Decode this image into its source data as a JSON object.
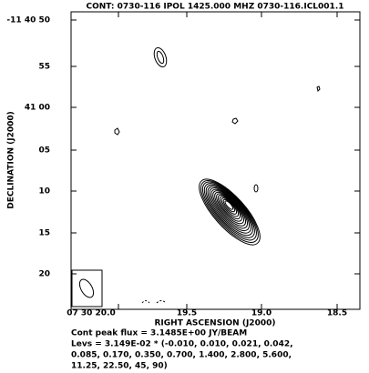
{
  "title": "CONT: 0730-116  IPOL  1425.000 MHZ  0730-116.ICL001.1",
  "axes": {
    "y_label": "DECLINATION (J2000)",
    "x_label": "RIGHT ASCENSION (J2000)",
    "y_ticks": [
      "-11 40 50",
      "55",
      "41 00",
      "05",
      "10",
      "15",
      "20"
    ],
    "x_ticks": [
      "07 30 20.0",
      "19.5",
      "19.0",
      "18.5"
    ]
  },
  "footer": [
    "Cont peak flux =  3.1485E+00 JY/BEAM",
    "Levs = 3.149E-02 * (-0.010, 0.010, 0.021, 0.042,",
    "0.085, 0.170, 0.350, 0.700, 1.400, 2.800, 5.600,",
    "11.25, 22.50, 45, 90)"
  ]
}
